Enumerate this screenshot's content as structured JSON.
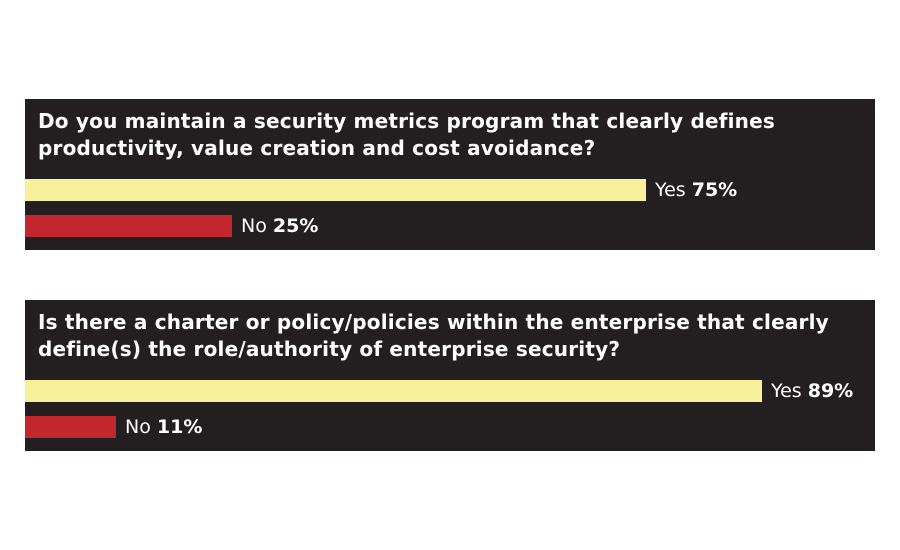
{
  "chart_data": [
    {
      "type": "bar",
      "orientation": "horizontal",
      "question": "Do you maintain a security metrics program that clearly defines productivity, value creation and cost avoidance?",
      "categories": [
        "Yes",
        "No"
      ],
      "values": [
        75,
        25
      ],
      "value_labels": [
        "75%",
        "25%"
      ],
      "unit": "%",
      "xlim": [
        0,
        100
      ],
      "colors": [
        "#f8f19c",
        "#c1272d"
      ]
    },
    {
      "type": "bar",
      "orientation": "horizontal",
      "question": "Is there a charter or policy/policies within the enterprise that clearly define(s) the role/authority of enterprise security?",
      "categories": [
        "Yes",
        "No"
      ],
      "values": [
        89,
        11
      ],
      "value_labels": [
        "89%",
        "11%"
      ],
      "unit": "%",
      "xlim": [
        0,
        100
      ],
      "colors": [
        "#f8f19c",
        "#c1272d"
      ]
    }
  ],
  "background_color": "#231f20"
}
